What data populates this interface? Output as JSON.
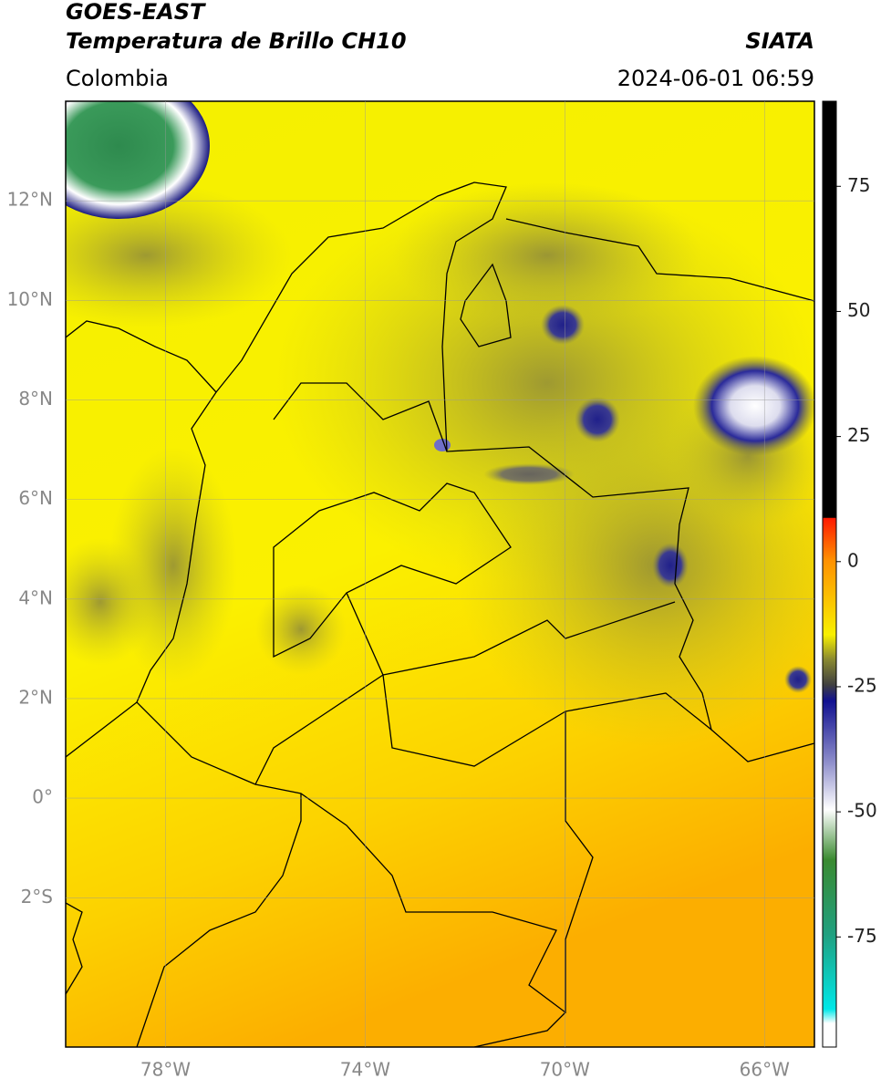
{
  "header": {
    "title": "GOES-EAST",
    "subtitle": "Temperatura de Brillo CH10",
    "region": "Colombia",
    "source": "SIATA",
    "timestamp": "2024-06-01 06:59"
  },
  "map": {
    "lonlim": [
      -80,
      -65
    ],
    "latlim": [
      -5,
      14
    ],
    "lon_ticks": [
      {
        "value": -78,
        "label": "78°W"
      },
      {
        "value": -74,
        "label": "74°W"
      },
      {
        "value": -70,
        "label": "70°W"
      },
      {
        "value": -66,
        "label": "66°W"
      }
    ],
    "lat_ticks": [
      {
        "value": 12,
        "label": "12°N"
      },
      {
        "value": 10,
        "label": "10°N"
      },
      {
        "value": 8,
        "label": "8°N"
      },
      {
        "value": 6,
        "label": "6°N"
      },
      {
        "value": 4,
        "label": "4°N"
      },
      {
        "value": 2,
        "label": "2°N"
      },
      {
        "value": 0,
        "label": "0°"
      },
      {
        "value": -2,
        "label": "2°S"
      }
    ]
  },
  "colorbar": {
    "lim": [
      -97,
      92
    ],
    "ticks": [
      75,
      50,
      25,
      0,
      -25,
      -50,
      -75
    ]
  }
}
